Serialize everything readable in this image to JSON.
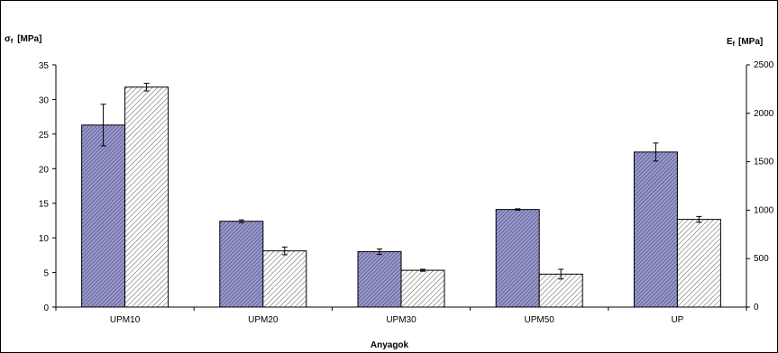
{
  "chart_data": {
    "type": "bar",
    "categories": [
      "UPM10",
      "UPM20",
      "UPM30",
      "UPM50",
      "UP"
    ],
    "series": [
      {
        "name": "",
        "axis": "left",
        "values": [
          26.3,
          12.4,
          8.0,
          14.1,
          22.4
        ],
        "errors": [
          3.0,
          0.2,
          0.4,
          0.1,
          1.3
        ],
        "fill": "#9999cc",
        "pattern": "dense-diagonal"
      },
      {
        "name": "",
        "axis": "right",
        "values": [
          2270,
          580,
          380,
          340,
          905
        ],
        "errors": [
          40,
          40,
          10,
          50,
          30
        ],
        "fill": "#ffffff",
        "pattern": "sparse-diagonal"
      }
    ],
    "xlabel": "Anyagok",
    "ylabel_left_main": "σ",
    "ylabel_left_sub": "f",
    "ylabel_left_unit": "[MPa]",
    "ylabel_right_main": "E",
    "ylabel_right_sub": "f",
    "ylabel_right_unit": "[MPa]",
    "ylim_left": [
      0,
      35
    ],
    "ylim_right": [
      0,
      2500
    ],
    "yticks_left": [
      "0",
      "5",
      "10",
      "15",
      "20",
      "25",
      "30",
      "35"
    ],
    "yticks_right": [
      "0",
      "500",
      "1000",
      "1500",
      "2000",
      "2500"
    ],
    "grid": false,
    "legend": "none"
  }
}
